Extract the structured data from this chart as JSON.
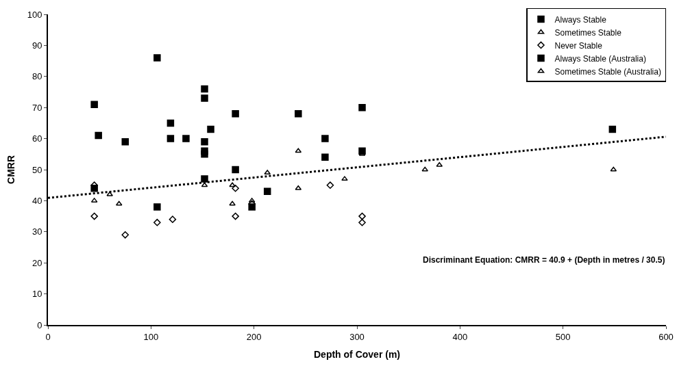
{
  "chart_data": {
    "type": "scatter",
    "xlabel": "Depth of Cover (m)",
    "ylabel": "CMRR",
    "xlim": [
      0,
      600
    ],
    "xticks": [
      0,
      100,
      200,
      300,
      400,
      500,
      600
    ],
    "ylim": [
      0,
      100
    ],
    "yticks": [
      0,
      10,
      20,
      30,
      40,
      50,
      60,
      70,
      80,
      90,
      100
    ],
    "legend": "top right",
    "annotations": [
      "Discriminant Equation: CMRR = 40.9 + (Depth in metres / 30.5)"
    ],
    "series": [
      {
        "name": "Always Stable",
        "color": "#000000",
        "marker": "square",
        "x": [
          45,
          49,
          106,
          119,
          119,
          134,
          152,
          152,
          152,
          152,
          158,
          269,
          269
        ],
        "values": [
          71,
          61,
          86,
          65,
          60,
          60,
          76,
          73,
          56,
          55,
          63,
          60,
          54
        ]
      },
      {
        "name": "Sometimes Stable",
        "color": "#000000",
        "marker": "triangle",
        "x": [
          45,
          60,
          69,
          152,
          179,
          179,
          198,
          243,
          243,
          305,
          549
        ],
        "values": [
          40,
          42,
          39,
          45,
          39,
          45,
          40,
          56,
          44,
          55,
          50
        ]
      },
      {
        "name": "Never Stable",
        "color": "#000000",
        "marker": "diamond",
        "x": [
          45,
          45,
          75,
          106,
          121,
          182,
          182,
          198,
          274,
          305,
          305
        ],
        "values": [
          45,
          35,
          29,
          33,
          34,
          44,
          35,
          39,
          45,
          35,
          33
        ]
      },
      {
        "name": "Always Stable (Australia)",
        "color": "#000000",
        "marker": "square",
        "x": [
          45,
          75,
          106,
          152,
          152,
          182,
          182,
          198,
          213,
          243,
          305,
          305,
          548
        ],
        "values": [
          44,
          59,
          38,
          59,
          47,
          68,
          50,
          38,
          43,
          68,
          70,
          56,
          63
        ]
      },
      {
        "name": "Sometimes Stable (Australia)",
        "color": "#000000",
        "marker": "triangle",
        "x": [
          213,
          288,
          366,
          380
        ],
        "values": [
          49,
          47,
          50,
          51.5
        ]
      },
      {
        "type": "line",
        "color": "#000000",
        "line_style": "dotted",
        "marker": "none",
        "x": [
          0,
          600
        ],
        "values": [
          40.9,
          60.6
        ]
      }
    ]
  }
}
